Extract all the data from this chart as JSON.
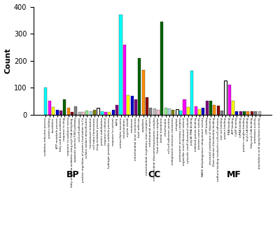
{
  "ylabel": "Count",
  "ylim": [
    0,
    400
  ],
  "yticks": [
    0,
    100,
    200,
    300,
    400
  ],
  "background_color": "#ffffff",
  "sections": {
    "BP": {
      "categories": [
        "oxidation-reduction process",
        "protein folding",
        "translation",
        "ATP metabolic process",
        "fatty acid beta-oxidation",
        "response to drug",
        "response to oxidative stress",
        "fatty acid beta-oxidation using acyl-CoA dehydrog.",
        "apoptotic process P450 pathway",
        "cell-cell adhesion",
        "positive regulation of protein localization to Ca",
        "cellular oxidant detoxification",
        "translational initiation",
        "cell redox homeostasis",
        "drug metabolic process",
        "protein stabilization",
        "response to ethanol",
        "hydrogen peroxide catabolic process",
        "response to nutrient",
        "aging"
      ],
      "values": [
        100,
        50,
        28,
        18,
        15,
        55,
        25,
        10,
        30,
        10,
        10,
        15,
        12,
        17,
        25,
        12,
        10,
        10,
        18,
        35
      ]
    },
    "CC": {
      "categories": [
        "extracellular exosome",
        "mitochondrion",
        "myelin sheath",
        "membrane",
        "mitochondrial inner membrane",
        "focal adhesion",
        "cytoplasm",
        "mitochondrial respiratory chain complex I",
        "mitochondrial matrix",
        "mitochondrial ribosome/respirasome complex",
        "focal membrane complex",
        "lateral membrane",
        "mitochondria",
        "cell-cell adherens junction",
        "endoplasmic reticulum membrane",
        "mitoplast",
        "proteasome accessory complex",
        "organellar small ribosomal subunit",
        "cytosolic small ribosomal subunit"
      ],
      "values": [
        370,
        260,
        72,
        70,
        55,
        210,
        165,
        65,
        25,
        22,
        18,
        345,
        25,
        22,
        18,
        20,
        15,
        55,
        28
      ]
    },
    "MF": {
      "categories": [
        "poly(A) RNA binding",
        "inhibited protein binding",
        "electron carrier activity",
        "NADH dehydrogenase (ubiquinone) activity",
        "GTP binding",
        "structural constituent of ribosome",
        "flavin adenine dinucleotide binding",
        "cadherin binding involved in cell-cell adhesion",
        "iron ion binding",
        "protein binding",
        "RNA binding",
        "ATP binding",
        "CoDP binding",
        "mRNA binding",
        "protein complex binding",
        "acyl-CoA binding",
        "fatty-acyl-CoA binding",
        "aromatase activity",
        "arachidonic acid epoxy/mono activity"
      ],
      "values": [
        163,
        30,
        20,
        25,
        50,
        50,
        35,
        33,
        15,
        125,
        110,
        50,
        12,
        12,
        13,
        12,
        12,
        12,
        12
      ]
    }
  },
  "color_cycle": [
    "#00ffff",
    "#ff00ff",
    "#ffff00",
    "#0000cd",
    "#800080",
    "#006400",
    "#ff8c00",
    "#8b0000",
    "#808080",
    "#c0c0c0",
    "#ffc0cb",
    "#90ee90",
    "#add8e6",
    "#808000",
    "#ffffff",
    "#00ffff",
    "#ff00ff",
    "#ffff00",
    "#0000cd",
    "#800080"
  ],
  "section_label_fontsize": 9,
  "ylabel_fontsize": 8,
  "tick_fontsize": 7
}
